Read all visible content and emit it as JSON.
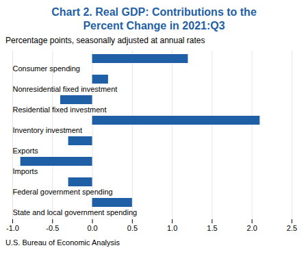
{
  "chart_data": {
    "type": "bar",
    "orientation": "horizontal",
    "title": "Chart 2. Real GDP: Contributions to the\nPercent Change in 2021:Q3",
    "subtitle": "Percentage points, seasonally adjusted at annual rates",
    "footer": "U.S. Bureau of Economic Analysis",
    "categories": [
      "Consumer spending",
      "Nonresidential fixed investment",
      "Residential fixed investment",
      "Inventory investment",
      "Exports",
      "Imports",
      "Federal government spending",
      "State and local government spending"
    ],
    "values": [
      1.2,
      0.2,
      -0.4,
      2.1,
      -0.3,
      -0.9,
      -0.3,
      0.5
    ],
    "color": "#1f5fa6",
    "xlim": [
      -1.0,
      2.5
    ],
    "xticks": [
      {
        "value": -1.0,
        "label": "-1.0"
      },
      -0.5,
      {
        "value": 0.0,
        "label": "0.0"
      },
      0.5,
      {
        "value": 1.0,
        "label": "1.0"
      },
      1.5,
      {
        "value": 2.0,
        "label": "2.0"
      },
      2.5
    ],
    "grid": true
  }
}
